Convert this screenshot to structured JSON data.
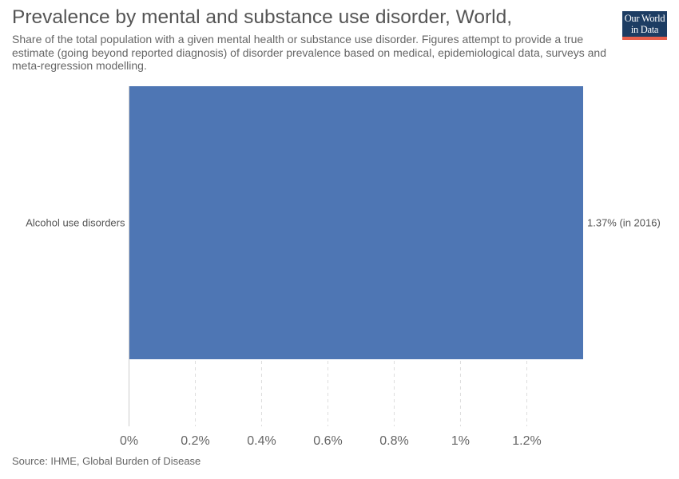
{
  "title": "Prevalence by mental and substance use disorder, World,",
  "subtitle": "Share of the total population with a given mental health or substance use disorder. Figures attempt to provide a true estimate (going beyond reported diagnosis) of disorder prevalence based on medical, epidemiological data, surveys and meta-regression modelling.",
  "logo": {
    "line1": "Our World",
    "line2": "in Data",
    "background_color": "#1d3d63",
    "accent_color": "#e8604c"
  },
  "source": "Source: IHME, Global Burden of Disease",
  "chart_data": {
    "type": "bar",
    "orientation": "horizontal",
    "categories": [
      "Alcohol use disorders"
    ],
    "values": [
      1.37
    ],
    "unit": "%",
    "data_labels": [
      "1.37% (in 2016)"
    ],
    "xlim": [
      0,
      1.37
    ],
    "xticks": [
      0,
      0.2,
      0.4,
      0.6,
      0.8,
      1.0,
      1.2
    ],
    "xtick_labels": [
      "0%",
      "0.2%",
      "0.4%",
      "0.6%",
      "0.8%",
      "1%",
      "1.2%"
    ],
    "grid": "vertical dashed",
    "bar_color": "#4e76b4"
  }
}
